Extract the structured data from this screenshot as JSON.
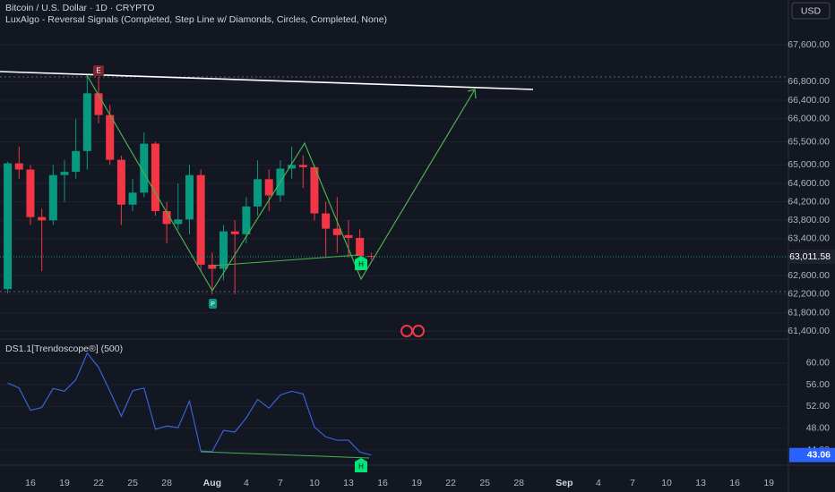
{
  "chart_data": [
    {
      "type": "candlestick",
      "title": "Bitcoin / U.S. Dollar · 1D · CRYPTO",
      "subtitle": "LuxAlgo - Reversal Signals (Completed, Step Line w/ Diamonds, Circles, Completed, None)",
      "currency": "USD",
      "categories": [
        null,
        null,
        "16",
        null,
        null,
        "19",
        null,
        null,
        "22",
        null,
        null,
        "25",
        null,
        null,
        "28",
        null,
        null,
        null,
        "Aug",
        null,
        null,
        "4",
        null,
        null,
        "7",
        null,
        null,
        "10",
        null,
        null,
        "13",
        null,
        null,
        "16",
        null,
        null,
        "19",
        null,
        null,
        "22",
        null,
        null,
        "25",
        null,
        null,
        "28",
        null,
        null,
        null,
        "Sep",
        null,
        null,
        "4",
        null,
        null,
        "7",
        null,
        null,
        "10",
        null,
        null,
        "13",
        null,
        null,
        "16",
        null,
        null,
        "19"
      ],
      "open": [
        62313,
        65034,
        64900,
        63870,
        63800,
        64780,
        64850,
        65300,
        66550,
        66080,
        65110,
        64140,
        64400,
        65460,
        64000,
        63720,
        63820,
        64780,
        62840,
        62750,
        63560,
        63500,
        64100,
        64690,
        64340,
        64920,
        65000,
        64950,
        63950,
        63620,
        63480,
        63420,
        63030,
        null,
        null,
        null,
        null,
        null,
        null,
        null,
        null,
        null,
        null,
        null,
        null,
        null,
        null,
        null,
        null,
        null,
        null,
        null,
        null,
        null,
        null,
        null,
        null,
        null,
        null,
        null,
        null,
        null,
        null,
        null,
        null,
        null,
        null,
        null
      ],
      "high": [
        65070,
        65400,
        65000,
        64050,
        65000,
        65100,
        66000,
        66940,
        66900,
        66300,
        65200,
        64700,
        65700,
        65500,
        64200,
        64600,
        65000,
        64900,
        63100,
        63700,
        63800,
        64300,
        65100,
        64900,
        65100,
        65400,
        65200,
        65000,
        64200,
        64300,
        63800,
        63600,
        63100,
        null,
        null,
        null,
        null,
        null,
        null,
        null,
        null,
        null,
        null,
        null,
        null,
        null,
        null,
        null,
        null,
        null,
        null,
        null,
        null,
        null,
        null,
        null,
        null,
        null,
        null,
        null,
        null,
        null,
        null,
        null,
        null,
        null,
        null,
        null
      ],
      "low": [
        62220,
        64700,
        63700,
        62700,
        63700,
        64200,
        64700,
        64900,
        65900,
        65000,
        63700,
        64000,
        64300,
        63900,
        63300,
        63600,
        63500,
        62700,
        62200,
        62500,
        62200,
        63300,
        63900,
        64000,
        64200,
        64700,
        64500,
        63800,
        63000,
        63100,
        63000,
        62700,
        62950,
        null,
        null,
        null,
        null,
        null,
        null,
        null,
        null,
        null,
        null,
        null,
        null,
        null,
        null,
        null,
        null,
        null,
        null,
        null,
        null,
        null,
        null,
        null,
        null,
        null,
        null,
        null,
        null,
        null,
        null,
        null,
        null,
        null,
        null,
        null
      ],
      "close": [
        65034,
        64900,
        63870,
        63800,
        64780,
        64850,
        65300,
        66550,
        66080,
        65110,
        64140,
        64400,
        65460,
        64000,
        63720,
        63820,
        64780,
        62840,
        62750,
        63560,
        63500,
        64100,
        64690,
        64340,
        64920,
        65000,
        64950,
        63950,
        63620,
        63480,
        63420,
        63030,
        63011.58,
        null,
        null,
        null,
        null,
        null,
        null,
        null,
        null,
        null,
        null,
        null,
        null,
        null,
        null,
        null,
        null,
        null,
        null,
        null,
        null,
        null,
        null,
        null,
        null,
        null,
        null,
        null,
        null,
        null,
        null,
        null,
        null,
        null,
        null,
        null
      ],
      "last_close_label": "63,011.58",
      "colors": {
        "up": "#089981",
        "down": "#f23645"
      },
      "ylim": [
        61230,
        68570
      ],
      "yticks": [
        {
          "value": 67600,
          "label": "67,600.00"
        },
        {
          "value": 66800,
          "label": "66,800.00"
        },
        {
          "value": 66400,
          "label": "66,400.00"
        },
        {
          "value": 66000,
          "label": "66,000.00"
        },
        {
          "value": 65500,
          "label": "65,500.00"
        },
        {
          "value": 65000,
          "label": "65,000.00"
        },
        {
          "value": 64600,
          "label": "64,600.00"
        },
        {
          "value": 64200,
          "label": "64,200.00"
        },
        {
          "value": 63800,
          "label": "63,800.00"
        },
        {
          "value": 63400,
          "label": "63,400.00"
        },
        {
          "value": 62600,
          "label": "62,600.00"
        },
        {
          "value": 62200,
          "label": "62,200.00"
        },
        {
          "value": 61800,
          "label": "61,800.00"
        },
        {
          "value": 61400,
          "label": "61,400.00"
        }
      ],
      "annotations": [
        "E",
        "P",
        "H"
      ]
    },
    {
      "type": "line",
      "title": "DS1.1[Trendoscope®] (500)",
      "color": "#3a62d8",
      "values": [
        56.3,
        55.4,
        51.3,
        51.8,
        55.3,
        54.8,
        56.9,
        61.8,
        59.2,
        54.8,
        50.2,
        54.9,
        55.4,
        47.8,
        48.4,
        48.1,
        53.0,
        43.8,
        43.7,
        47.6,
        47.3,
        49.9,
        53.3,
        51.7,
        54.1,
        54.8,
        54.3,
        48.2,
        46.4,
        45.8,
        45.8,
        43.6,
        43.06,
        null,
        null,
        null,
        null,
        null,
        null,
        null,
        null,
        null,
        null,
        null,
        null,
        null,
        null,
        null,
        null,
        null,
        null,
        null,
        null,
        null,
        null,
        null,
        null,
        null,
        null,
        null,
        null,
        null,
        null,
        null,
        null,
        null,
        null,
        null
      ],
      "ylim": [
        41.2,
        64.4
      ],
      "yticks": [
        {
          "value": 60,
          "label": "60.00"
        },
        {
          "value": 56,
          "label": "56.00"
        },
        {
          "value": 52,
          "label": "52.00"
        },
        {
          "value": 48,
          "label": "48.00"
        },
        {
          "value": 44,
          "label": "44.00"
        }
      ],
      "annotations": [
        "H"
      ]
    }
  ]
}
